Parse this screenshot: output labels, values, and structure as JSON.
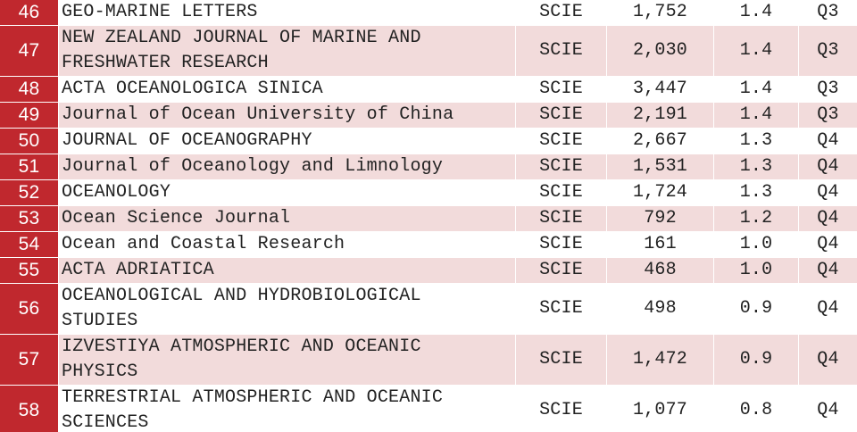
{
  "table": {
    "rows": [
      [
        "46",
        "GEO-MARINE LETTERS",
        "SCIE",
        "1,752",
        "1.4",
        "Q3"
      ],
      [
        "47",
        "NEW ZEALAND JOURNAL OF MARINE AND FRESHWATER RESEARCH",
        "SCIE",
        "2,030",
        "1.4",
        "Q3"
      ],
      [
        "48",
        "ACTA OCEANOLOGICA SINICA",
        "SCIE",
        "3,447",
        "1.4",
        "Q3"
      ],
      [
        "49",
        "Journal of Ocean University of China",
        "SCIE",
        "2,191",
        "1.4",
        "Q3"
      ],
      [
        "50",
        "JOURNAL OF OCEANOGRAPHY",
        "SCIE",
        "2,667",
        "1.3",
        "Q4"
      ],
      [
        "51",
        "Journal of Oceanology and Limnology",
        "SCIE",
        "1,531",
        "1.3",
        "Q4"
      ],
      [
        "52",
        "OCEANOLOGY",
        "SCIE",
        "1,724",
        "1.3",
        "Q4"
      ],
      [
        "53",
        "Ocean Science Journal",
        "SCIE",
        "792",
        "1.2",
        "Q4"
      ],
      [
        "54",
        "Ocean and Coastal Research",
        "SCIE",
        "161",
        "1.0",
        "Q4"
      ],
      [
        "55",
        "ACTA ADRIATICA",
        "SCIE",
        "468",
        "1.0",
        "Q4"
      ],
      [
        "56",
        "OCEANOLOGICAL AND HYDROBIOLOGICAL STUDIES",
        "SCIE",
        "498",
        "0.9",
        "Q4"
      ],
      [
        "57",
        "IZVESTIYA ATMOSPHERIC AND OCEANIC PHYSICS",
        "SCIE",
        "1,472",
        "0.9",
        "Q4"
      ],
      [
        "58",
        "TERRESTRIAL ATMOSPHERIC AND OCEANIC SCIENCES",
        "SCIE",
        "1,077",
        "0.8",
        "Q4"
      ]
    ]
  }
}
